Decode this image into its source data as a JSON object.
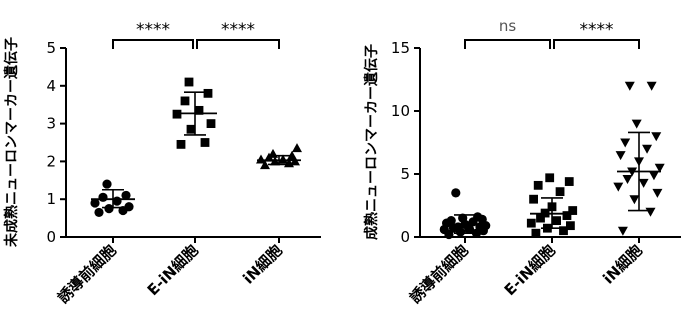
{
  "chart_data": [
    {
      "type": "scatter",
      "ylabel": "未成熟ニューロンマーカー遺伝子",
      "ylim": [
        0,
        5
      ],
      "yticks": [
        0,
        1,
        2,
        3,
        4,
        5
      ],
      "categories": [
        "誘導前細胞",
        "E-iN細胞",
        "iN細胞"
      ],
      "groups": [
        {
          "name": "誘導前細胞",
          "marker": "circle",
          "values": [
            0.65,
            0.7,
            0.75,
            0.8,
            0.9,
            0.95,
            1.05,
            1.1,
            1.4
          ],
          "mean": 1.0,
          "sd_low": 0.78,
          "sd_high": 1.25
        },
        {
          "name": "E-iN細胞",
          "marker": "square",
          "values": [
            2.45,
            2.5,
            2.85,
            3.0,
            3.25,
            3.35,
            3.6,
            3.8,
            4.1
          ],
          "mean": 3.27,
          "sd_low": 2.7,
          "sd_high": 3.83
        },
        {
          "name": "iN細胞",
          "marker": "triangle-up",
          "values": [
            1.9,
            1.95,
            2.0,
            2.0,
            2.05,
            2.05,
            2.1,
            2.15,
            2.2,
            2.35
          ],
          "mean": 2.03,
          "sd_low": 1.92,
          "sd_high": 2.15
        }
      ],
      "comparisons": [
        {
          "from": 0,
          "to": 1,
          "label": "****"
        },
        {
          "from": 1,
          "to": 2,
          "label": "****"
        }
      ]
    },
    {
      "type": "scatter",
      "ylabel": "成熟ニューロンマーカー遺伝子",
      "ylim": [
        0,
        15
      ],
      "yticks": [
        0,
        5,
        10,
        15
      ],
      "categories": [
        "誘導前細胞",
        "E-iN細胞",
        "iN細胞"
      ],
      "groups": [
        {
          "name": "誘導前細胞",
          "marker": "circle",
          "values": [
            0.2,
            0.3,
            0.4,
            0.5,
            0.6,
            0.6,
            0.7,
            0.8,
            0.8,
            0.9,
            1.0,
            1.1,
            1.2,
            1.3,
            1.4,
            1.5,
            1.6,
            3.5
          ],
          "mean": 1.0,
          "sd_low": 0.3,
          "sd_high": 1.75
        },
        {
          "name": "E-iN細胞",
          "marker": "square",
          "values": [
            0.3,
            0.5,
            0.7,
            0.9,
            1.1,
            1.3,
            1.5,
            1.7,
            1.9,
            2.1,
            2.4,
            3.0,
            3.6,
            4.1,
            4.4,
            4.7
          ],
          "mean": 1.85,
          "sd_low": 0.7,
          "sd_high": 3.1
        },
        {
          "name": "iN細胞",
          "marker": "triangle-down",
          "values": [
            0.5,
            2.0,
            3.0,
            3.5,
            4.0,
            4.3,
            4.6,
            4.9,
            5.2,
            5.5,
            6.0,
            6.5,
            7.0,
            7.5,
            8.0,
            9.0,
            12.0,
            12.0
          ],
          "mean": 5.2,
          "sd_low": 2.1,
          "sd_high": 8.3
        }
      ],
      "comparisons": [
        {
          "from": 0,
          "to": 1,
          "label": "ns"
        },
        {
          "from": 1,
          "to": 2,
          "label": "****"
        }
      ]
    }
  ]
}
